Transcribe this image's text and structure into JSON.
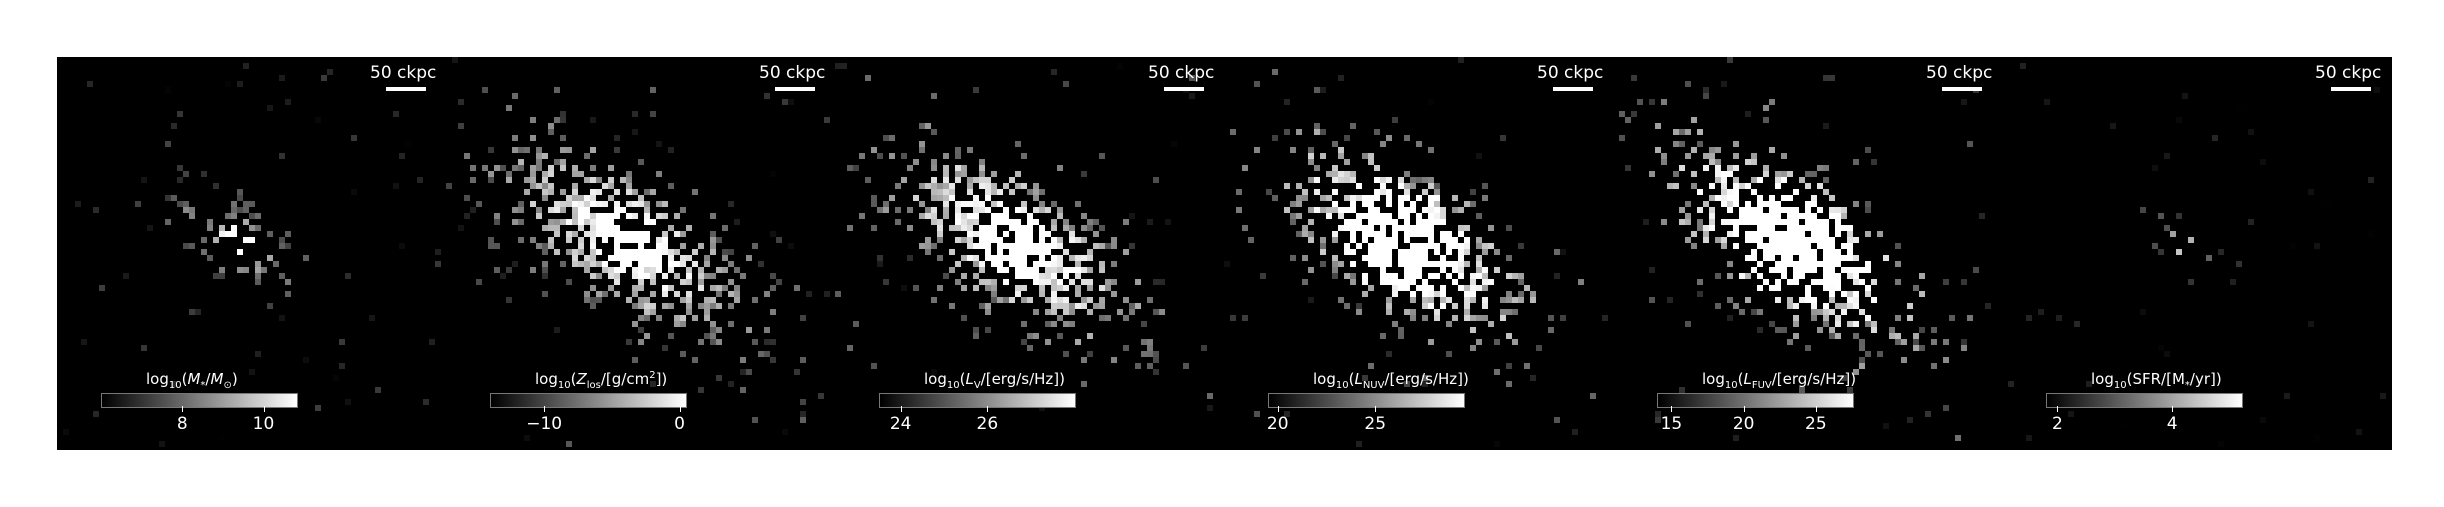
{
  "scale": {
    "label": "50 ckpc"
  },
  "panels": [
    {
      "id": "stellar-mass",
      "cb_label_html": "log<sub>10</sub>(<i>M</i><sub>*</sub>/<i>M</i><sub>⊙</sub>)",
      "cb_range": [
        6,
        10.8
      ],
      "ticks": [
        {
          "value": 8,
          "label": "8"
        },
        {
          "value": 10,
          "label": "10"
        }
      ],
      "style": {
        "density": 0.35,
        "brightness": 0.55,
        "core": 1.0,
        "core_size": 0.06,
        "spread": 0.22
      }
    },
    {
      "id": "metals",
      "cb_label_html": "log<sub>10</sub>(<i>Z</i><sub>los</sub>/[g/cm<sup>2</sup>])",
      "cb_range": [
        -14,
        0.4
      ],
      "ticks": [
        {
          "value": -10,
          "label": "−10"
        },
        {
          "value": 0,
          "label": "0"
        }
      ],
      "style": {
        "density": 0.8,
        "brightness": 0.85,
        "core": 1.0,
        "core_size": 0.09,
        "spread": 0.38
      }
    },
    {
      "id": "luminosity-v",
      "cb_label_html": "log<sub>10</sub>(<i>L</i><sub>V</sub>/[erg/s/Hz])",
      "cb_range": [
        23.5,
        28
      ],
      "ticks": [
        {
          "value": 24,
          "label": "24"
        },
        {
          "value": 26,
          "label": "26"
        }
      ],
      "style": {
        "density": 0.8,
        "brightness": 0.9,
        "core": 1.0,
        "core_size": 0.11,
        "spread": 0.38
      }
    },
    {
      "id": "luminosity-nuv",
      "cb_label_html": "log<sub>10</sub>(<i>L</i><sub>NUV</sub>/[erg/s/Hz])",
      "cb_range": [
        19.5,
        29.5
      ],
      "ticks": [
        {
          "value": 20,
          "label": "20"
        },
        {
          "value": 25,
          "label": "25"
        }
      ],
      "style": {
        "density": 0.85,
        "brightness": 1.0,
        "core": 1.0,
        "core_size": 0.16,
        "spread": 0.38
      }
    },
    {
      "id": "luminosity-fuv",
      "cb_label_html": "log<sub>10</sub>(<i>L</i><sub>FUV</sub>/[erg/s/Hz])",
      "cb_range": [
        14,
        27.5
      ],
      "ticks": [
        {
          "value": 15,
          "label": "15"
        },
        {
          "value": 20,
          "label": "20"
        },
        {
          "value": 25,
          "label": "25"
        }
      ],
      "style": {
        "density": 0.85,
        "brightness": 1.05,
        "core": 1.0,
        "core_size": 0.18,
        "spread": 0.38
      }
    },
    {
      "id": "sfr",
      "cb_label_html": "log<sub>10</sub>(SFR/[M<sub>*</sub>/yr])",
      "cb_range": [
        1.8,
        5.2
      ],
      "ticks": [
        {
          "value": 2,
          "label": "2"
        },
        {
          "value": 4,
          "label": "4"
        }
      ],
      "style": {
        "density": 0.12,
        "brightness": 0.35,
        "core": 1.0,
        "core_size": 0.04,
        "spread": 0.15
      }
    }
  ]
}
